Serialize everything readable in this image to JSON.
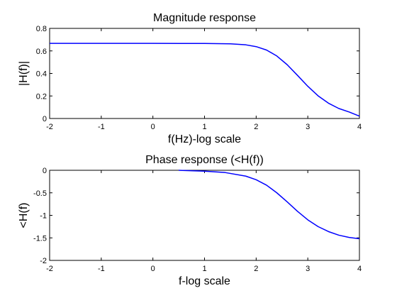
{
  "chart_data": [
    {
      "type": "line",
      "title": "Magnitude response",
      "xlabel": "f(Hz)-log scale",
      "ylabel": "|H(f)|",
      "xlim": [
        -2,
        4
      ],
      "ylim": [
        0,
        0.8
      ],
      "xticks": [
        "-2",
        "-1",
        "0",
        "1",
        "2",
        "3",
        "4"
      ],
      "yticks": [
        "0",
        "0.2",
        "0.4",
        "0.6",
        "0.8"
      ],
      "grid": false,
      "line_color": "#0000ff",
      "series": [
        {
          "x": [
            -2,
            -1,
            0,
            1,
            1.5,
            1.8,
            2.0,
            2.2,
            2.4,
            2.6,
            2.8,
            3.0,
            3.2,
            3.4,
            3.6,
            3.8,
            4.0
          ],
          "y": [
            0.667,
            0.667,
            0.667,
            0.666,
            0.663,
            0.654,
            0.638,
            0.608,
            0.555,
            0.478,
            0.383,
            0.286,
            0.201,
            0.136,
            0.089,
            0.058,
            0.021
          ]
        }
      ]
    },
    {
      "type": "line",
      "title": "Phase response (<H(f))",
      "xlabel": "f-log scale",
      "ylabel": "<H(f)",
      "xlim": [
        -2,
        4
      ],
      "ylim": [
        -2,
        0
      ],
      "xticks": [
        "-2",
        "-1",
        "0",
        "1",
        "2",
        "3",
        "4"
      ],
      "yticks": [
        "-2",
        "-1.5",
        "-1",
        "-0.5",
        "0"
      ],
      "grid": false,
      "line_color": "#0000ff",
      "series": [
        {
          "x": [
            0.5,
            1.0,
            1.4,
            1.8,
            2.0,
            2.2,
            2.4,
            2.6,
            2.8,
            3.0,
            3.2,
            3.4,
            3.6,
            3.8,
            4.0
          ],
          "y": [
            0.0,
            -0.02,
            -0.05,
            -0.13,
            -0.21,
            -0.33,
            -0.5,
            -0.7,
            -0.91,
            -1.1,
            -1.25,
            -1.36,
            -1.44,
            -1.49,
            -1.52
          ]
        }
      ]
    }
  ]
}
